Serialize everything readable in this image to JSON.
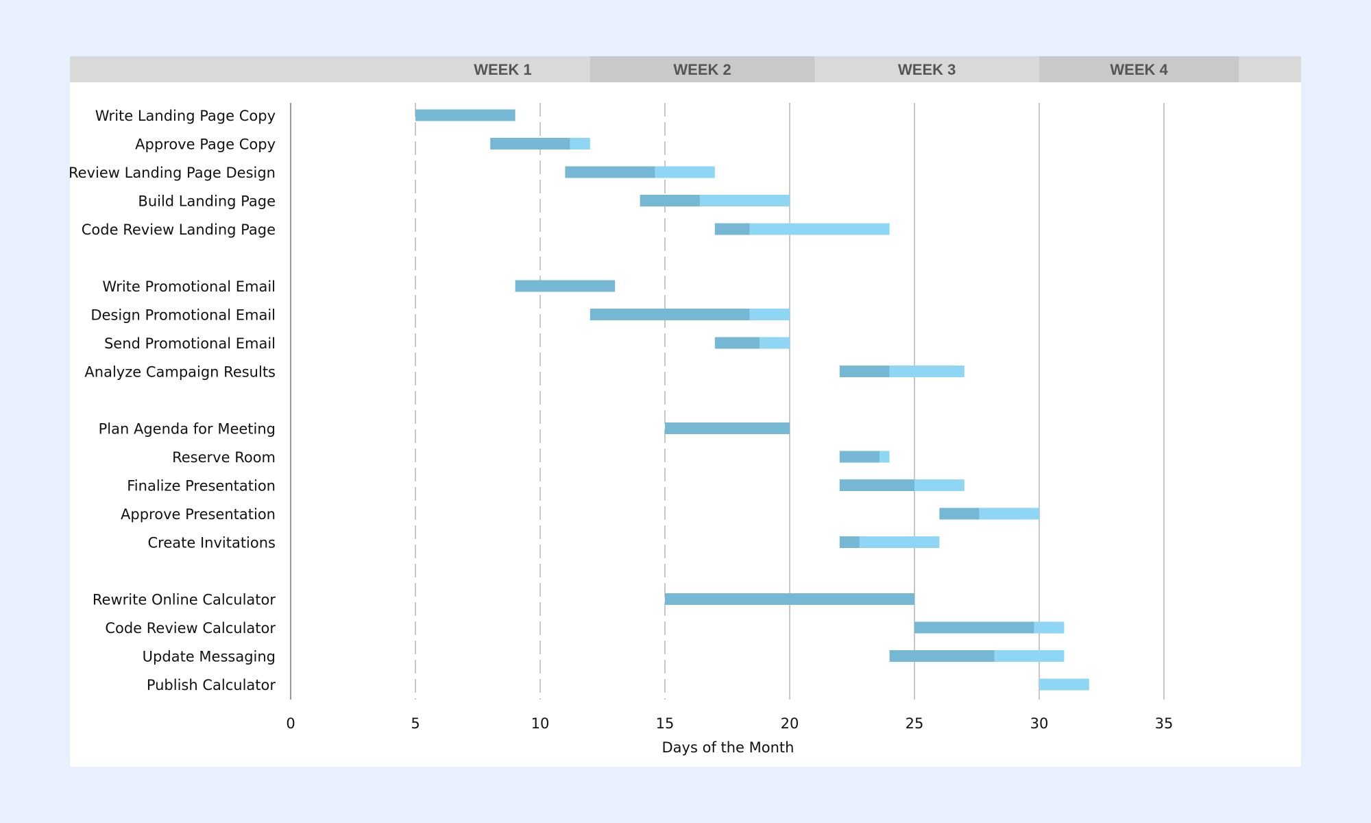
{
  "chart_data": {
    "type": "bar",
    "orientation": "horizontal-gantt",
    "xlabel": "Days of the Month",
    "xlim": [
      0,
      35
    ],
    "xticks": [
      0,
      5,
      10,
      15,
      20,
      25,
      30,
      35
    ],
    "grid": true,
    "weeks": [
      {
        "label": "WEEK 1",
        "start": 5,
        "end": 12
      },
      {
        "label": "WEEK 2",
        "start": 12,
        "end": 21
      },
      {
        "label": "WEEK 3",
        "start": 21,
        "end": 30
      },
      {
        "label": "WEEK 4",
        "start": 30,
        "end": 38
      }
    ],
    "series": [
      {
        "key": "completed",
        "color": "#76b8d4"
      },
      {
        "key": "remaining",
        "color": "#8ed6f3"
      }
    ],
    "groups": [
      {
        "tasks": [
          {
            "name": "Write Landing Page Copy",
            "start": 5,
            "completed": 4,
            "remaining": 0
          },
          {
            "name": "Approve Page Copy",
            "start": 8,
            "completed": 3.2,
            "remaining": 0.8
          },
          {
            "name": "Review Landing Page Design",
            "start": 11,
            "completed": 3.6,
            "remaining": 2.4
          },
          {
            "name": "Build Landing Page",
            "start": 14,
            "completed": 2.4,
            "remaining": 3.6
          },
          {
            "name": "Code Review Landing Page",
            "start": 17,
            "completed": 1.4,
            "remaining": 5.6
          }
        ]
      },
      {
        "tasks": [
          {
            "name": "Write Promotional Email",
            "start": 9,
            "completed": 4,
            "remaining": 0
          },
          {
            "name": "Design Promotional Email",
            "start": 12,
            "completed": 6.4,
            "remaining": 1.6
          },
          {
            "name": "Send Promotional Email",
            "start": 17,
            "completed": 1.8,
            "remaining": 1.2
          },
          {
            "name": "Analyze Campaign Results",
            "start": 22,
            "completed": 2,
            "remaining": 3
          }
        ]
      },
      {
        "tasks": [
          {
            "name": "Plan Agenda for Meeting",
            "start": 15,
            "completed": 5,
            "remaining": 0
          },
          {
            "name": "Reserve Room",
            "start": 22,
            "completed": 1.6,
            "remaining": 0.4
          },
          {
            "name": "Finalize Presentation",
            "start": 22,
            "completed": 3,
            "remaining": 2
          },
          {
            "name": "Approve Presentation",
            "start": 26,
            "completed": 1.6,
            "remaining": 2.4
          },
          {
            "name": "Create Invitations",
            "start": 22,
            "completed": 0.8,
            "remaining": 3.2
          }
        ]
      },
      {
        "tasks": [
          {
            "name": "Rewrite Online Calculator",
            "start": 15,
            "completed": 10,
            "remaining": 0
          },
          {
            "name": "Code Review Calculator",
            "start": 25,
            "completed": 4.8,
            "remaining": 1.2
          },
          {
            "name": "Update Messaging",
            "start": 24,
            "completed": 4.2,
            "remaining": 2.8
          },
          {
            "name": "Publish Calculator",
            "start": 30,
            "completed": 0,
            "remaining": 2
          }
        ]
      }
    ],
    "colors": {
      "header_light": "#d9d9d9",
      "header_dark": "#c9c9c9",
      "gridline": "#c8c8c8"
    }
  }
}
